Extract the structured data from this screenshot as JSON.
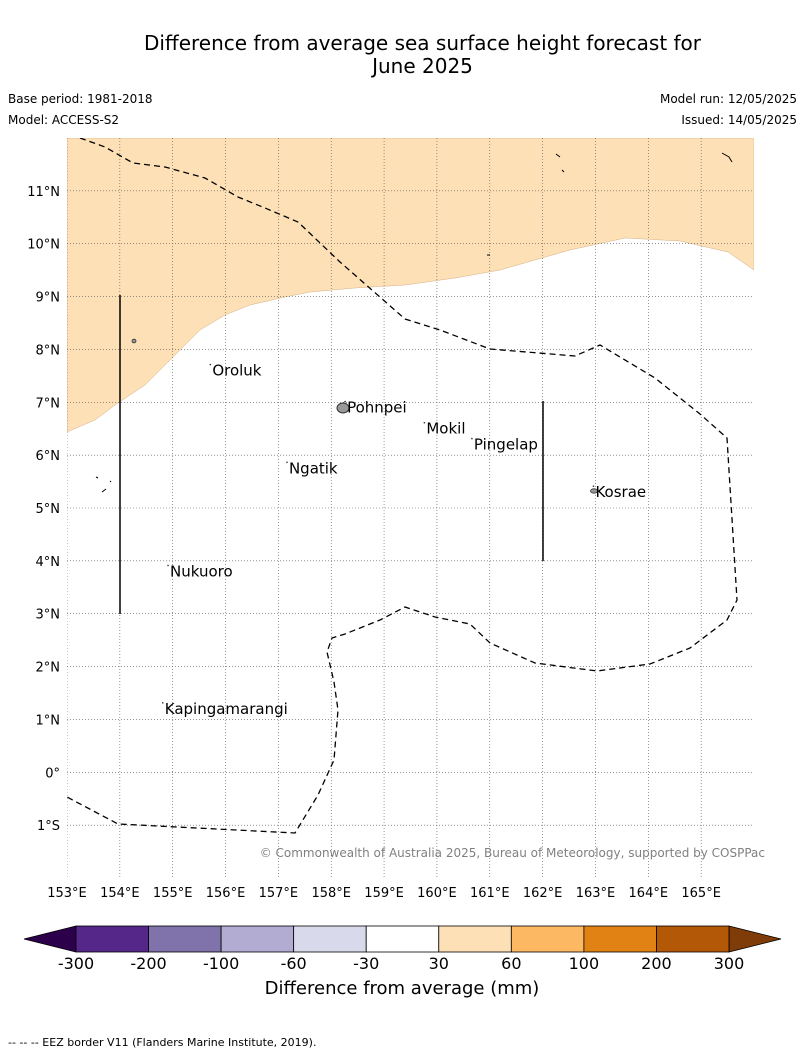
{
  "title": {
    "line1": "Difference from average sea surface height forecast for",
    "line2": "June 2025"
  },
  "meta": {
    "base_period": "Base period: 1981-2018",
    "model": "Model: ACCESS-S2",
    "model_run": "Model run: 12/05/2025",
    "issued": "Issued: 14/05/2025"
  },
  "map": {
    "extent": {
      "lon": [
        153,
        166
      ],
      "lat": [
        -2,
        12
      ]
    },
    "lon_ticks": [
      {
        "value": 153,
        "label": "153°E"
      },
      {
        "value": 154,
        "label": "154°E"
      },
      {
        "value": 155,
        "label": "155°E"
      },
      {
        "value": 156,
        "label": "156°E"
      },
      {
        "value": 157,
        "label": "157°E"
      },
      {
        "value": 158,
        "label": "158°E"
      },
      {
        "value": 159,
        "label": "159°E"
      },
      {
        "value": 160,
        "label": "160°E"
      },
      {
        "value": 161,
        "label": "161°E"
      },
      {
        "value": 162,
        "label": "162°E"
      },
      {
        "value": 163,
        "label": "163°E"
      },
      {
        "value": 164,
        "label": "164°E"
      },
      {
        "value": 165,
        "label": "165°E"
      }
    ],
    "lat_ticks": [
      {
        "value": 11,
        "label": "11°N"
      },
      {
        "value": 10,
        "label": "10°N"
      },
      {
        "value": 9,
        "label": "9°N"
      },
      {
        "value": 8,
        "label": "8°N"
      },
      {
        "value": 7,
        "label": "7°N"
      },
      {
        "value": 6,
        "label": "6°N"
      },
      {
        "value": 5,
        "label": "5°N"
      },
      {
        "value": 4,
        "label": "4°N"
      },
      {
        "value": 3,
        "label": "3°N"
      },
      {
        "value": 2,
        "label": "2°N"
      },
      {
        "value": 1,
        "label": "1°N"
      },
      {
        "value": 0,
        "label": "0°"
      },
      {
        "value": -1,
        "label": "1°S"
      }
    ],
    "grid": true,
    "places": [
      {
        "name": "Oroluk",
        "lon": 155.75,
        "lat": 7.6
      },
      {
        "name": "Pohnpei",
        "lon": 158.3,
        "lat": 6.9
      },
      {
        "name": "Mokil",
        "lon": 159.8,
        "lat": 6.5
      },
      {
        "name": "Pingelap",
        "lon": 160.7,
        "lat": 6.2
      },
      {
        "name": "Ngatik",
        "lon": 157.2,
        "lat": 5.75
      },
      {
        "name": "Kosrae",
        "lon": 163.0,
        "lat": 5.3
      },
      {
        "name": "Nukuoro",
        "lon": 154.95,
        "lat": 3.8
      },
      {
        "name": "Kapingamarangi",
        "lon": 154.85,
        "lat": 1.2
      }
    ],
    "positive_region_color": "#fee0b6",
    "positive_region_class": "30 to 60",
    "copyright": "© Commonwealth of Australia 2025, Bureau of Meteorology, supported by COSPPac"
  },
  "colorbar": {
    "label": "Difference from average (mm)",
    "tick_labels": [
      "-300",
      "-200",
      "-100",
      "-60",
      "-30",
      "30",
      "60",
      "100",
      "200",
      "300"
    ],
    "under_color": "#2d004b",
    "over_color": "#7f3b08",
    "colors": [
      "#542788",
      "#8073ac",
      "#b2abd2",
      "#d8daeb",
      "#ffffff",
      "#fee0b6",
      "#fdb863",
      "#e08214",
      "#b35806"
    ]
  },
  "footnote": "--  --  -- EEZ border V11 (Flanders Marine Institute, 2019)."
}
